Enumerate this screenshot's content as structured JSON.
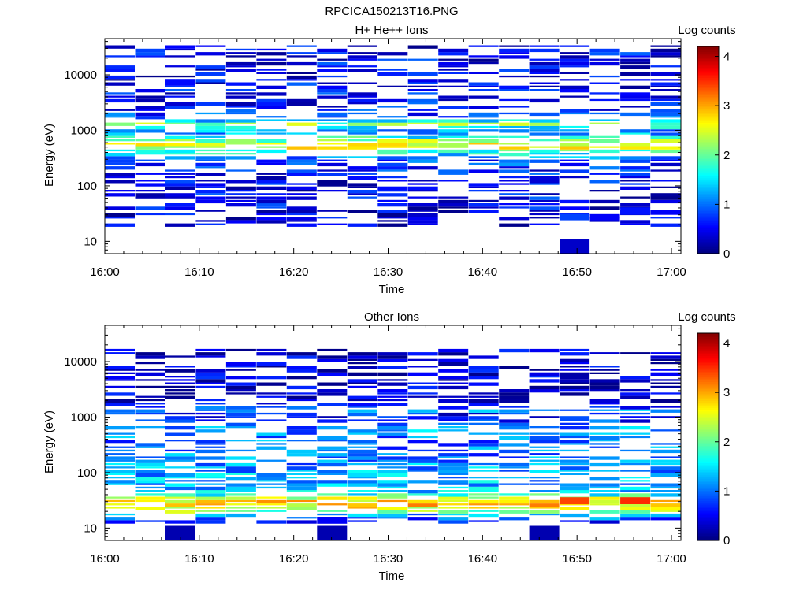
{
  "figure": {
    "title": "RPCICA150213T16.PNG"
  },
  "colormap": {
    "name": "jet",
    "stops": [
      "#00007f",
      "#0000ff",
      "#007fff",
      "#00ffff",
      "#7fff7f",
      "#ffff00",
      "#ff7f00",
      "#ff0000",
      "#7f0000"
    ]
  },
  "chart_data": [
    {
      "type": "heatmap",
      "title": "H+ He++ Ions",
      "xlabel": "Time",
      "ylabel": "Energy (eV)",
      "x_ticks": [
        "16:00",
        "16:10",
        "16:20",
        "16:30",
        "16:40",
        "16:50",
        "17:00"
      ],
      "x_range_minutes": [
        0,
        61
      ],
      "y_scale": "log",
      "y_ticks": [
        10,
        100,
        1000,
        10000
      ],
      "y_tick_labels": [
        "10",
        "100",
        "1000",
        "10000"
      ],
      "ylim": [
        6,
        45000
      ],
      "colorbar": {
        "label": "Log counts",
        "range": [
          0,
          4.2
        ],
        "ticks": [
          0,
          1,
          2,
          3,
          4
        ]
      },
      "time_bins": 19,
      "mean_profile": [
        [
          19,
          0.3
        ],
        [
          30,
          0.35
        ],
        [
          35,
          0.4
        ],
        [
          45,
          0.5
        ],
        [
          90,
          0.5
        ],
        [
          110,
          0.5
        ],
        [
          140,
          0.5
        ],
        [
          160,
          0.6
        ],
        [
          220,
          0.7
        ],
        [
          300,
          0.8
        ],
        [
          330,
          1.3
        ],
        [
          420,
          1.8
        ],
        [
          480,
          2.5
        ],
        [
          540,
          2.8
        ],
        [
          600,
          2.4
        ],
        [
          700,
          1.8
        ],
        [
          900,
          1.0
        ],
        [
          1100,
          1.5
        ],
        [
          1250,
          2.3
        ],
        [
          1400,
          1.6
        ],
        [
          1700,
          0.8
        ],
        [
          2500,
          0.6
        ],
        [
          4000,
          0.6
        ],
        [
          6000,
          0.5
        ],
        [
          10000,
          0.4
        ],
        [
          15000,
          0.5
        ],
        [
          25000,
          0.5
        ],
        [
          35000,
          0.4
        ]
      ],
      "occupancy_prob": 0.5,
      "blocks": [
        {
          "t_bin": 15,
          "e_min": 6,
          "e_max": 11,
          "value": 0.3
        },
        {
          "t_bin": 15,
          "e_min": 24,
          "e_max": 31,
          "value": 0.8
        },
        {
          "t_bin": 16,
          "e_min": 24,
          "e_max": 31,
          "value": 0.5
        },
        {
          "t_bin": 17,
          "e_min": 30,
          "e_max": 41,
          "value": 0.6
        },
        {
          "t_bin": 18,
          "e_min": 30,
          "e_max": 37,
          "value": 0.5
        }
      ]
    },
    {
      "type": "heatmap",
      "title": "Other Ions",
      "xlabel": "Time",
      "ylabel": "Energy (eV)",
      "x_ticks": [
        "16:00",
        "16:10",
        "16:20",
        "16:30",
        "16:40",
        "16:50",
        "17:00"
      ],
      "x_range_minutes": [
        0,
        61
      ],
      "y_scale": "log",
      "y_ticks": [
        10,
        100,
        1000,
        10000
      ],
      "y_tick_labels": [
        "10",
        "100",
        "1000",
        "10000"
      ],
      "ylim": [
        6,
        45000
      ],
      "colorbar": {
        "label": "Log counts",
        "range": [
          0,
          4.2
        ],
        "ticks": [
          0,
          1,
          2,
          3,
          4
        ]
      },
      "time_bins": 19,
      "mean_profile": [
        [
          12,
          0.5
        ],
        [
          14,
          0.8
        ],
        [
          17,
          1.2
        ],
        [
          19,
          2.0
        ],
        [
          22,
          2.5
        ],
        [
          25,
          2.7
        ],
        [
          28,
          2.9
        ],
        [
          32,
          2.6
        ],
        [
          38,
          1.8
        ],
        [
          45,
          1.4
        ],
        [
          60,
          1.2
        ],
        [
          80,
          1.3
        ],
        [
          100,
          1.2
        ],
        [
          150,
          1.1
        ],
        [
          200,
          1.0
        ],
        [
          300,
          1.0
        ],
        [
          450,
          1.0
        ],
        [
          600,
          1.2
        ],
        [
          800,
          0.7
        ],
        [
          1100,
          0.5
        ],
        [
          1300,
          1.2
        ],
        [
          1600,
          0.5
        ],
        [
          2000,
          0.4
        ],
        [
          2800,
          0.3
        ],
        [
          15000,
          0.3
        ],
        [
          17000,
          0.3
        ]
      ],
      "occupancy_prob": 0.55,
      "blocks": [
        {
          "t_bin": 2,
          "e_min": 6,
          "e_max": 11,
          "value": 0.2
        },
        {
          "t_bin": 7,
          "e_min": 6,
          "e_max": 11,
          "value": 0.2
        },
        {
          "t_bin": 14,
          "e_min": 6,
          "e_max": 11,
          "value": 0.2
        },
        {
          "t_bin": 7,
          "e_min": 12,
          "e_max": 16,
          "value": 0.5
        },
        {
          "t_bin": 15,
          "e_min": 27,
          "e_max": 36,
          "value": 3.4
        },
        {
          "t_bin": 17,
          "e_min": 27,
          "e_max": 36,
          "value": 3.5
        }
      ]
    }
  ]
}
